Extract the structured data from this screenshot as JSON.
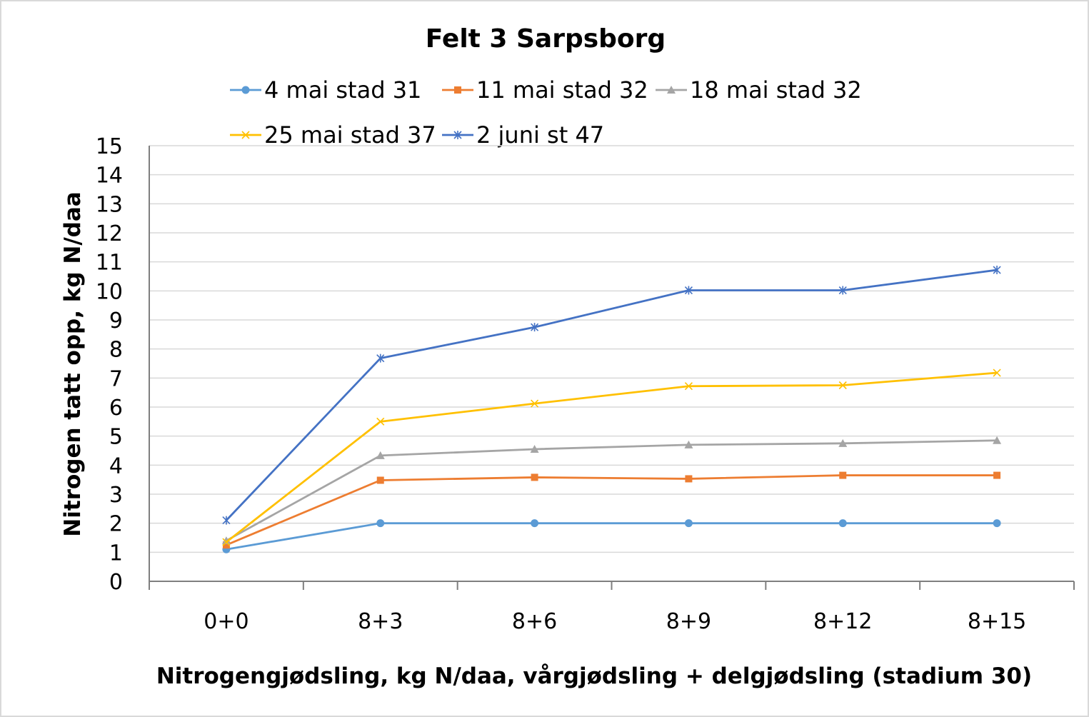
{
  "chart_data": {
    "type": "line",
    "title": "Felt 3 Sarpsborg",
    "xlabel": "Nitrogengjødsling, kg N/daa, vårgjødsling + delgjødsling (stadium 30)",
    "ylabel": "Nitrogen tatt opp, kg N/daa",
    "categories": [
      "0+0",
      "8+3",
      "8+6",
      "8+9",
      "8+12",
      "8+15"
    ],
    "ylim": [
      0,
      15
    ],
    "yticks": [
      "0",
      "1",
      "2",
      "3",
      "4",
      "5",
      "6",
      "7",
      "8",
      "9",
      "10",
      "11",
      "12",
      "13",
      "14",
      "15"
    ],
    "grid": "horizontal",
    "legend_position": "top",
    "series": [
      {
        "name": "4 mai stad 31",
        "color": "#5b9bd5",
        "marker": "circle",
        "values": [
          1.1,
          2.0,
          2.0,
          2.0,
          2.0,
          2.0
        ]
      },
      {
        "name": "11 mai stad 32",
        "color": "#ed7d31",
        "marker": "square",
        "values": [
          1.25,
          3.48,
          3.58,
          3.53,
          3.65,
          3.65
        ]
      },
      {
        "name": "18 mai stad 32",
        "color": "#a5a5a5",
        "marker": "triangle",
        "values": [
          1.4,
          4.33,
          4.55,
          4.7,
          4.75,
          4.85
        ]
      },
      {
        "name": "25 mai stad 37",
        "color": "#ffc000",
        "marker": "x",
        "values": [
          1.35,
          5.5,
          6.12,
          6.72,
          6.75,
          7.18
        ]
      },
      {
        "name": "2 juni st 47",
        "color": "#4472c4",
        "marker": "star",
        "values": [
          2.1,
          7.68,
          8.75,
          10.02,
          10.02,
          10.72
        ]
      }
    ]
  }
}
